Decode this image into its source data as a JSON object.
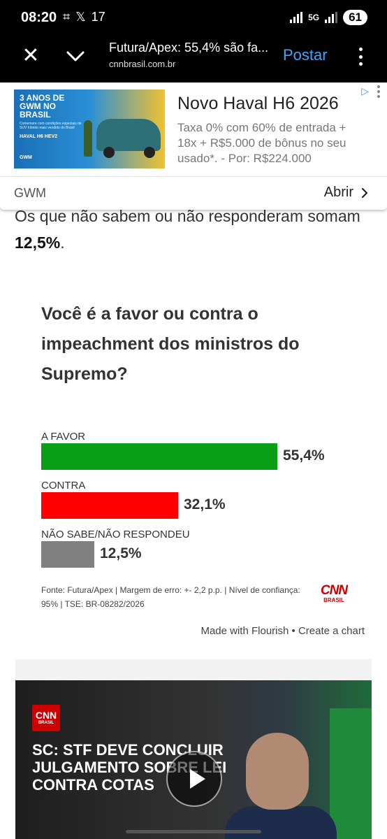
{
  "status_bar": {
    "time": "08:20",
    "notification_count": "17",
    "network": "5G",
    "battery": "61"
  },
  "browser": {
    "page_title": "Futura/Apex: 55,4% são fa...",
    "domain": "cnnbrasil.com.br",
    "post_label": "Postar"
  },
  "ad": {
    "image_title": "3 ANOS DE GWM NO BRASIL",
    "image_subtitle": "Comemore com condições especiais de SUV híbrido mais vendido do Brasil",
    "image_model": "HAVAL H6 HEV2",
    "image_brand": "GWM",
    "headline": "Novo Haval H6 2026",
    "description": "Taxa 0% com 60% de entrada + 18x + R$5.000 de bônus no seu usado*. - Por: R$224.000",
    "advertiser": "GWM",
    "cta": "Abrir"
  },
  "article": {
    "text_before": "Os que não sabem ou não responderam somam ",
    "text_bold": "12,5%",
    "text_after": "."
  },
  "chart_data": {
    "type": "bar",
    "title": "Você é a favor ou contra o impeachment dos ministros do Supremo?",
    "categories": [
      "A FAVOR",
      "CONTRA",
      "NÃO SABE/NÃO RESPONDEU"
    ],
    "values": [
      55.4,
      32.1,
      12.5
    ],
    "value_labels": [
      "55,4%",
      "32,1%",
      "12,5%"
    ],
    "colors": [
      "#0a9e14",
      "#ff0000",
      "#808080"
    ],
    "orientation": "horizontal",
    "xlim": [
      0,
      100
    ],
    "source": "Fonte: Futura/Apex | Margem de erro: +- 2,2 p.p. | Nível de confiança: 95% | TSE: BR-08282/2026",
    "logo_text": "CNN",
    "logo_sub": "BRASIL"
  },
  "flourish": {
    "made_with": "Made with Flourish",
    "separator": "•",
    "create": "Create a chart"
  },
  "video": {
    "logo_text": "CNN",
    "logo_sub": "BRASIL",
    "headline": "SC: STF DEVE CONCLUIR JULGAMENTO SOBRE LEI CONTRA COTAS"
  }
}
